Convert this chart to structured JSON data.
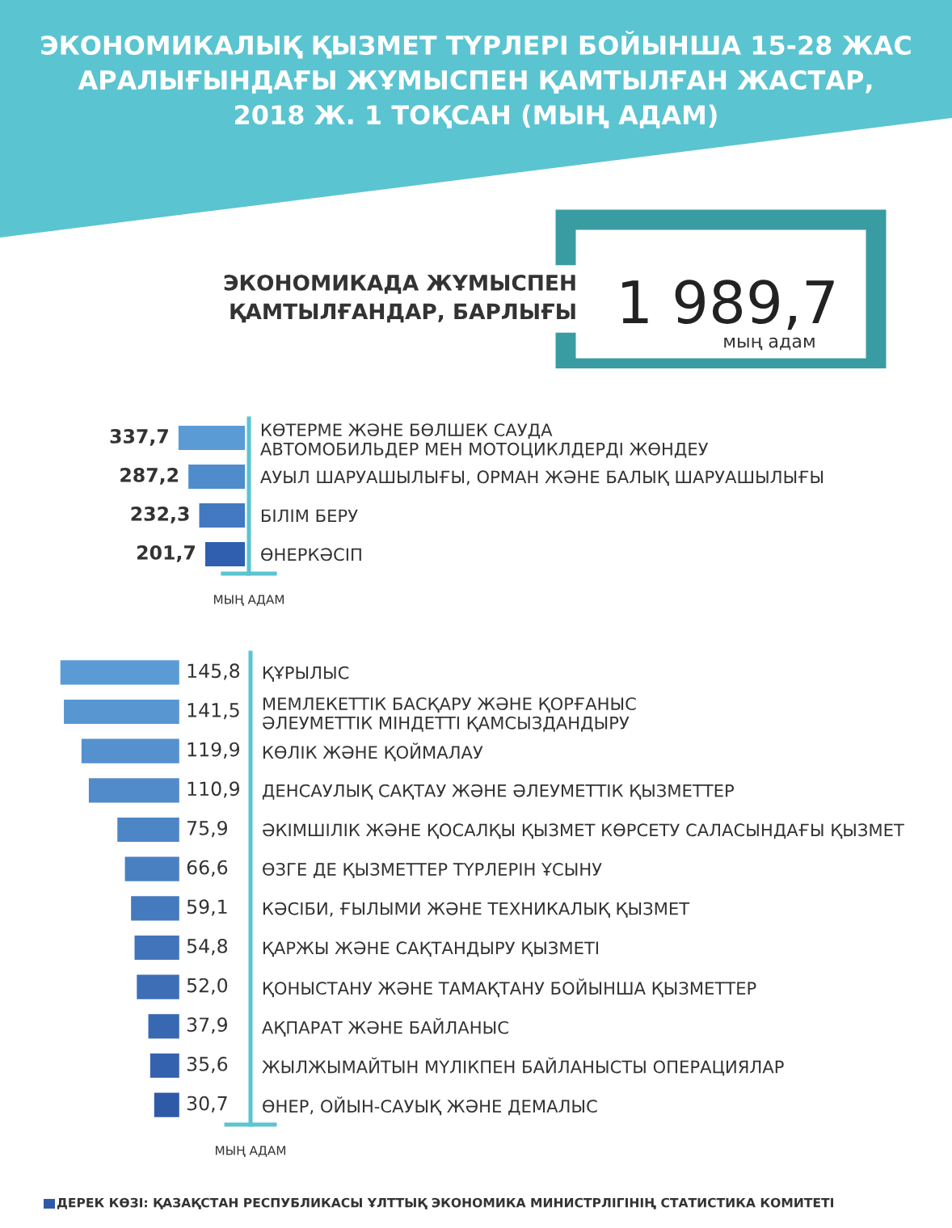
{
  "chart_data": [
    {
      "type": "other",
      "title": "ЭКОНОМИКАЛЫҚ ҚЫЗМЕТ ТҮРЛЕРІ БОЙЫНША 15-28 ЖАС\nАРАЛЫҒЫНДАҒЫ ЖҰМЫСПЕН ҚАМТЫЛҒАН ЖАСТАР,\n2018 Ж. 1 ТОҚСАН (МЫҢ АДАМ)",
      "subtitle": "ЭКОНОМИКАДА ЖҰМЫСПЕН\nҚАМТЫЛҒАНДАР, БАРЛЫҒЫ",
      "annotations": [
        "1 989,7",
        "мың адам"
      ]
    },
    {
      "type": "bar",
      "orientation": "horizontal",
      "tick_labels": "y",
      "xlabel": "МЫҢ АДАМ",
      "categories": [
        "КӨТЕРМЕ ЖӘНЕ БӨЛШЕК САУДА\nАВТОМОБИЛЬДЕР МЕН МОТОЦИКЛДЕРДІ ЖӨНДЕУ",
        "АУЫЛ ШАРУАШЫЛЫҒЫ, ОРМАН ЖӘНЕ БАЛЫҚ ШАРУАШЫЛЫҒЫ",
        "БІЛІМ БЕРУ",
        "ӨНЕРКӘСІП"
      ],
      "values": [
        337.7,
        287.2,
        232.3,
        201.7
      ],
      "value_labels": [
        "337,7",
        "287,2",
        "232,3",
        "201,7"
      ],
      "colors": [
        "#5b9bd5",
        "#4f8ccb",
        "#4379c0",
        "#2f5fae"
      ]
    },
    {
      "type": "bar",
      "orientation": "horizontal",
      "tick_labels": "y",
      "xlabel": "МЫҢ АДАМ",
      "categories": [
        "ҚҰРЫЛЫС",
        "МЕМЛЕКЕТТІК БАСҚАРУ ЖӘНЕ ҚОРҒАНЫС\nӘЛЕУМЕТТІК МІНДЕТТІ ҚАМСЫЗДАНДЫРУ",
        "КӨЛІК ЖӘНЕ ҚОЙМАЛАУ",
        "ДЕНСАУЛЫҚ САҚТАУ ЖӘНЕ ӘЛЕУМЕТТІК ҚЫЗМЕТТЕР",
        "ӘКІМШІЛІК ЖӘНЕ ҚОСАЛҚЫ ҚЫЗМЕТ КӨРСЕТУ САЛАСЫНДАҒЫ ҚЫЗМЕТ",
        "ӨЗГЕ ДЕ ҚЫЗМЕТТЕР ТҮРЛЕРІН ҰСЫНУ",
        "КӘСІБИ, ҒЫЛЫМИ ЖӘНЕ ТЕХНИКАЛЫҚ ҚЫЗМЕТ",
        "ҚАРЖЫ ЖӘНЕ САҚТАНДЫРУ ҚЫЗМЕТІ",
        "ҚОНЫСТАНУ ЖӘНЕ ТАМАҚТАНУ БОЙЫНША ҚЫЗМЕТТЕР",
        "АҚПАРАТ ЖӘНЕ БАЙЛАНЫС",
        "ЖЫЛЖЫМАЙТЫН МҮЛІКПЕН БАЙЛАНЫСТЫ ОПЕРАЦИЯЛАР",
        "ӨНЕР, ОЙЫН-САУЫҚ ЖӘНЕ ДЕМАЛЫС"
      ],
      "values": [
        145.8,
        141.5,
        119.9,
        110.9,
        75.9,
        66.6,
        59.1,
        54.8,
        52.0,
        37.9,
        35.6,
        30.7
      ],
      "value_labels": [
        "145,8",
        "141,5",
        "119,9",
        "110,9",
        "75,9",
        "66,6",
        "59,1",
        "54,8",
        "52,0",
        "37,9",
        "35,6",
        "30,7"
      ],
      "colors": [
        "#5b9bd5",
        "#5896d2",
        "#5591ce",
        "#518bca",
        "#4d86c6",
        "#4980c2",
        "#457abe",
        "#4174ba",
        "#3d6eb6",
        "#3968b2",
        "#3562ae",
        "#2f5aa8"
      ],
      "annotations": [
        "ДЕРЕК КӨЗІ: ҚАЗАҚСТАН РЕСПУБЛИКАСЫ ҰЛТТЫҚ ЭКОНОМИКА МИНИСТРЛІГІНІҢ СТАТИСТИКА КОМИТЕТІ"
      ]
    }
  ]
}
